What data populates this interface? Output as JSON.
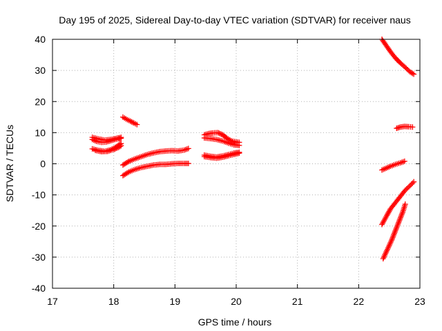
{
  "chart_data": {
    "type": "scatter",
    "title": "Day 195 of 2025, Sidereal Day-to-day VTEC variation (SDTVAR) for receiver naus",
    "xlabel": "GPS time / hours",
    "ylabel": "SDTVAR / TECUs",
    "xlim": [
      17,
      23
    ],
    "ylim": [
      -40,
      40
    ],
    "xticks": [
      17,
      18,
      19,
      20,
      21,
      22,
      23
    ],
    "yticks": [
      -40,
      -30,
      -20,
      -10,
      0,
      10,
      20,
      30,
      40
    ],
    "grid": true,
    "marker": "plus",
    "color": "#ff0000",
    "series": [
      {
        "x": [
          17.65,
          17.75,
          17.85,
          17.95,
          18.05,
          18.12
        ],
        "y": [
          8.5,
          8.0,
          7.6,
          7.8,
          8.2,
          8.5
        ]
      },
      {
        "x": [
          17.65,
          17.72,
          17.8,
          17.88,
          17.95,
          18.02,
          18.08,
          18.12
        ],
        "y": [
          7.8,
          7.2,
          6.9,
          7.0,
          7.4,
          7.8,
          8.0,
          8.2
        ]
      },
      {
        "x": [
          17.65,
          17.75,
          17.85,
          17.95,
          18.02,
          18.08,
          18.12
        ],
        "y": [
          4.8,
          4.3,
          4.0,
          4.5,
          5.2,
          6.0,
          6.5
        ]
      },
      {
        "x": [
          17.7,
          17.8,
          17.9,
          18.0,
          18.08,
          18.12
        ],
        "y": [
          4.3,
          3.9,
          4.0,
          4.6,
          5.3,
          5.8
        ]
      },
      {
        "x": [
          18.15,
          18.2,
          18.27,
          18.33,
          18.38
        ],
        "y": [
          15.0,
          14.4,
          13.7,
          13.1,
          12.6
        ]
      },
      {
        "x": [
          18.15,
          18.25,
          18.35,
          18.45,
          18.55,
          18.65,
          18.75,
          18.85,
          18.95,
          19.05,
          19.15,
          19.22
        ],
        "y": [
          -0.4,
          0.8,
          1.6,
          2.3,
          3.0,
          3.5,
          3.9,
          4.1,
          4.2,
          4.1,
          4.4,
          4.9
        ]
      },
      {
        "x": [
          18.15,
          18.25,
          18.35,
          18.45,
          18.55,
          18.65,
          18.75,
          18.85,
          18.95,
          19.05,
          19.15,
          19.22
        ],
        "y": [
          -3.8,
          -2.6,
          -1.8,
          -1.2,
          -0.8,
          -0.4,
          -0.2,
          -0.2,
          0.0,
          0.1,
          0.1,
          0.1
        ]
      },
      {
        "x": [
          19.48,
          19.55,
          19.62,
          19.7,
          19.78,
          19.85,
          19.92,
          20.0,
          20.05
        ],
        "y": [
          9.3,
          9.7,
          9.9,
          10.0,
          9.3,
          8.2,
          7.4,
          7.0,
          6.9
        ]
      },
      {
        "x": [
          19.48,
          19.58,
          19.68,
          19.78,
          19.88,
          19.96,
          20.05
        ],
        "y": [
          8.3,
          8.1,
          7.8,
          7.3,
          6.6,
          6.1,
          5.9
        ]
      },
      {
        "x": [
          19.48,
          19.58,
          19.68,
          19.78,
          19.88,
          19.96,
          20.05
        ],
        "y": [
          2.8,
          2.4,
          2.2,
          2.5,
          3.0,
          3.4,
          3.7
        ]
      },
      {
        "x": [
          19.48,
          19.58,
          19.68,
          19.78,
          19.88,
          19.96,
          20.05
        ],
        "y": [
          2.3,
          2.0,
          1.8,
          2.1,
          2.6,
          3.0,
          3.4
        ]
      },
      {
        "x": [
          22.38,
          22.45,
          22.52,
          22.6,
          22.68,
          22.76,
          22.84,
          22.9
        ],
        "y": [
          40.0,
          38.0,
          36.0,
          34.0,
          32.4,
          31.0,
          29.5,
          28.8
        ]
      },
      {
        "x": [
          22.62,
          22.68,
          22.75,
          22.82,
          22.88
        ],
        "y": [
          11.4,
          11.8,
          12.0,
          11.9,
          11.8
        ]
      },
      {
        "x": [
          22.38,
          22.45,
          22.52,
          22.6,
          22.68,
          22.75
        ],
        "y": [
          -2.0,
          -1.4,
          -0.8,
          -0.2,
          0.3,
          0.8
        ]
      },
      {
        "x": [
          22.38,
          22.45,
          22.52,
          22.6,
          22.68,
          22.76,
          22.84,
          22.9
        ],
        "y": [
          -19.5,
          -17.0,
          -14.5,
          -12.5,
          -10.5,
          -8.5,
          -7.0,
          -5.8
        ]
      },
      {
        "x": [
          22.4,
          22.47,
          22.54,
          22.6,
          22.66,
          22.72,
          22.76
        ],
        "y": [
          -30.5,
          -27.5,
          -24.5,
          -21.5,
          -18.5,
          -15.5,
          -13.0
        ]
      }
    ]
  }
}
